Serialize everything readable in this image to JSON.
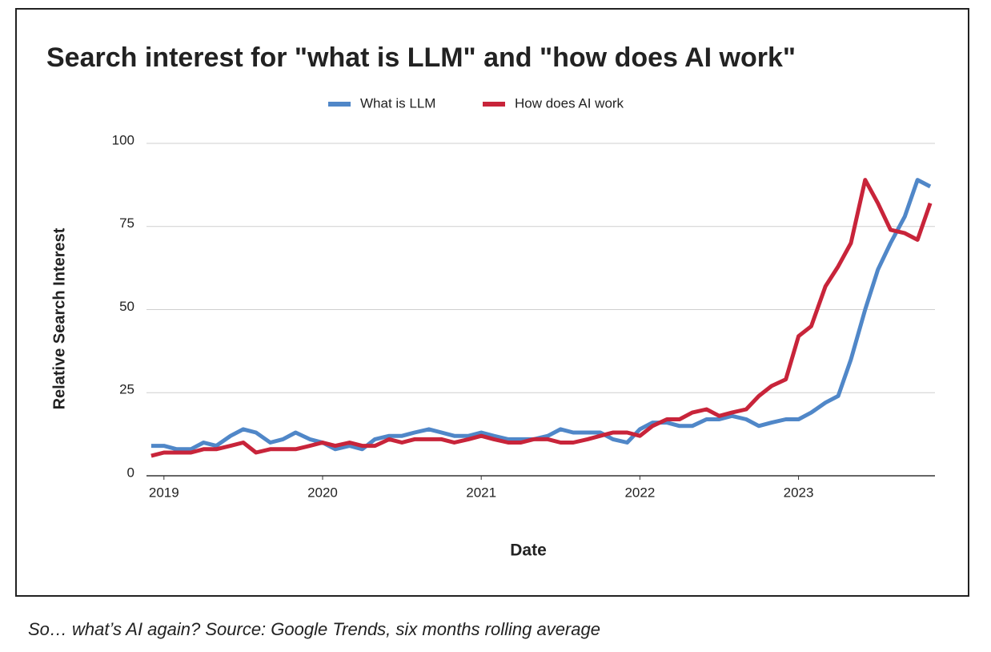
{
  "chart_data": {
    "type": "line",
    "title": "Search interest for \"what is LLM\" and \"how does AI work\"",
    "xlabel": "Date",
    "ylabel": "Relative Search Interest",
    "caption": "So… what’s AI again? Source: Google Trends, six months rolling average",
    "x": [
      2018.92,
      2019.0,
      2019.08,
      2019.17,
      2019.25,
      2019.33,
      2019.42,
      2019.5,
      2019.58,
      2019.67,
      2019.75,
      2019.83,
      2019.92,
      2020.0,
      2020.08,
      2020.17,
      2020.25,
      2020.33,
      2020.42,
      2020.5,
      2020.58,
      2020.67,
      2020.75,
      2020.83,
      2020.92,
      2021.0,
      2021.08,
      2021.17,
      2021.25,
      2021.33,
      2021.42,
      2021.5,
      2021.58,
      2021.67,
      2021.75,
      2021.83,
      2021.92,
      2022.0,
      2022.08,
      2022.17,
      2022.25,
      2022.33,
      2022.42,
      2022.5,
      2022.58,
      2022.67,
      2022.75,
      2022.83,
      2022.92,
      2023.0,
      2023.08,
      2023.17,
      2023.25,
      2023.33,
      2023.42,
      2023.5,
      2023.58,
      2023.67,
      2023.75,
      2023.83
    ],
    "series": [
      {
        "name": "What is LLM",
        "color": "#5087c8",
        "values": [
          9,
          9,
          8,
          8,
          10,
          9,
          12,
          14,
          13,
          10,
          11,
          13,
          11,
          10,
          8,
          9,
          8,
          11,
          12,
          12,
          13,
          14,
          13,
          12,
          12,
          13,
          12,
          11,
          11,
          11,
          12,
          14,
          13,
          13,
          13,
          11,
          10,
          14,
          16,
          16,
          15,
          15,
          17,
          17,
          18,
          17,
          15,
          16,
          17,
          17,
          19,
          22,
          24,
          35,
          50,
          62,
          70,
          78,
          89,
          87
        ]
      },
      {
        "name": "How does AI work",
        "color": "#c8243a",
        "values": [
          6,
          7,
          7,
          7,
          8,
          8,
          9,
          10,
          7,
          8,
          8,
          8,
          9,
          10,
          9,
          10,
          9,
          9,
          11,
          10,
          11,
          11,
          11,
          10,
          11,
          12,
          11,
          10,
          10,
          11,
          11,
          10,
          10,
          11,
          12,
          13,
          13,
          12,
          15,
          17,
          17,
          19,
          20,
          18,
          19,
          20,
          24,
          27,
          29,
          42,
          45,
          57,
          63,
          70,
          89,
          82,
          74,
          73,
          71,
          82
        ]
      }
    ],
    "xlim": [
      2018.89,
      2023.86
    ],
    "xticks": [
      2019,
      2020,
      2021,
      2022,
      2023
    ],
    "ylim": [
      0,
      100
    ],
    "yticks": [
      0,
      25,
      50,
      75,
      100
    ],
    "grid": true,
    "legend": "top"
  }
}
